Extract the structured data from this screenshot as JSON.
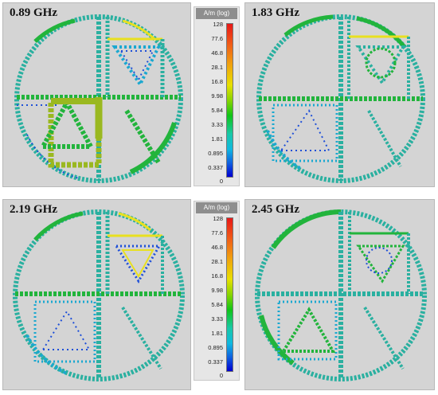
{
  "panels": [
    {
      "id": "p1",
      "label": "0.89 GHz"
    },
    {
      "id": "p2",
      "label": "1.83 GHz"
    },
    {
      "id": "p3",
      "label": "2.19 GHz"
    },
    {
      "id": "p4",
      "label": "2.45 GHz"
    }
  ],
  "colorbar": {
    "unit": "A/m (log)",
    "ticks": [
      "128",
      "77.6",
      "46.8",
      "28.1",
      "16.8",
      "9.98",
      "5.84",
      "3.33",
      "1.81",
      "0.895",
      "0.337",
      "0"
    ]
  },
  "colors": {
    "green": "#22b43c",
    "teal": "#2ab0a0",
    "cyan": "#1aa8d0",
    "blue": "#1e4fd8",
    "yellow": "#e8e020",
    "olive": "#9ab820",
    "background": "#d4d4d4"
  }
}
